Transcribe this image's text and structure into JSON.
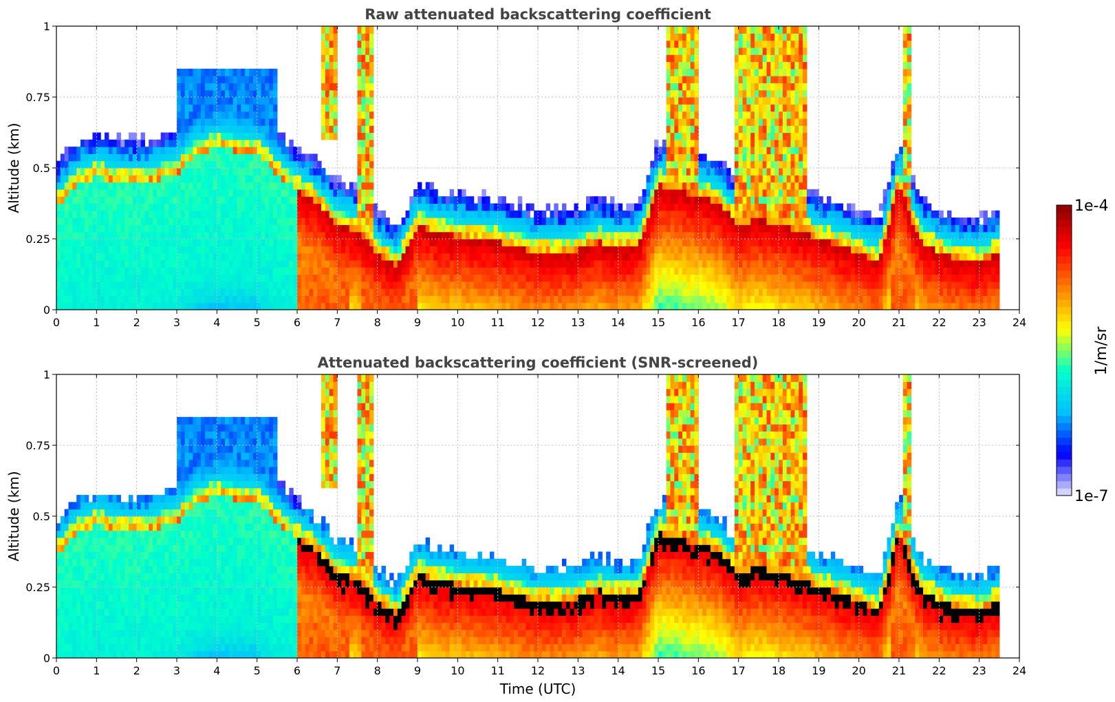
{
  "chart_data": [
    {
      "type": "heatmap",
      "title": "Raw attenuated backscattering coefficient",
      "xlabel": "",
      "ylabel": "Altitude (km)",
      "xlim": [
        0,
        24
      ],
      "ylim": [
        0,
        1
      ],
      "x_ticks": [
        0,
        1,
        2,
        3,
        4,
        5,
        6,
        7,
        8,
        9,
        10,
        11,
        12,
        13,
        14,
        15,
        16,
        17,
        18,
        19,
        20,
        21,
        22,
        23,
        24
      ],
      "y_ticks": [
        0,
        0.25,
        0.5,
        0.75,
        1
      ],
      "y_tick_labels": [
        "0",
        "0.25",
        "0.5",
        "0.75",
        "1"
      ],
      "grid": true,
      "data_end_hour": 23.5,
      "cloud_layer": {
        "description_units": "hour vs cloud altitude in km",
        "times": [
          0,
          0.5,
          1,
          1.5,
          2,
          2.5,
          3,
          3.5,
          4,
          4.5,
          5,
          5.5,
          6,
          6.5,
          7,
          7.5,
          8,
          8.5,
          9,
          9.5,
          10,
          10.5,
          11,
          11.5,
          12,
          12.5,
          13,
          13.5,
          14,
          14.5,
          15,
          15.5,
          16,
          16.5,
          17,
          17.5,
          18,
          18.5,
          19,
          19.5,
          20,
          20.5,
          21,
          21.5,
          22,
          22.5,
          23,
          23.5
        ],
        "altitude_km": [
          0.36,
          0.44,
          0.47,
          0.45,
          0.44,
          0.46,
          0.48,
          0.55,
          0.57,
          0.56,
          0.55,
          0.48,
          0.42,
          0.38,
          0.3,
          0.28,
          0.2,
          0.15,
          0.3,
          0.27,
          0.26,
          0.25,
          0.24,
          0.22,
          0.2,
          0.2,
          0.21,
          0.24,
          0.22,
          0.22,
          0.44,
          0.42,
          0.4,
          0.38,
          0.3,
          0.32,
          0.3,
          0.28,
          0.25,
          0.23,
          0.2,
          0.17,
          0.45,
          0.25,
          0.2,
          0.18,
          0.17,
          0.2
        ]
      },
      "screened": false
    },
    {
      "type": "heatmap",
      "title": "Attenuated backscattering coefficient (SNR-screened)",
      "xlabel": "Time (UTC)",
      "ylabel": "Altitude (km)",
      "xlim": [
        0,
        24
      ],
      "ylim": [
        0,
        1
      ],
      "x_ticks": [
        0,
        1,
        2,
        3,
        4,
        5,
        6,
        7,
        8,
        9,
        10,
        11,
        12,
        13,
        14,
        15,
        16,
        17,
        18,
        19,
        20,
        21,
        22,
        23,
        24
      ],
      "y_ticks": [
        0,
        0.25,
        0.5,
        0.75,
        1
      ],
      "y_tick_labels": [
        "0",
        "0.25",
        "0.5",
        "0.75",
        "1"
      ],
      "grid": true,
      "data_end_hour": 23.5,
      "screened": true
    }
  ],
  "colorbar": {
    "label": "1/m/sr",
    "max_label": "1e-4",
    "min_label": "1e-7",
    "scale": "log",
    "range": [
      1e-07,
      0.0001
    ],
    "colormap": [
      "#e6e6fa",
      "#0000ff",
      "#00bfff",
      "#00ffcc",
      "#ffff00",
      "#ff8000",
      "#ff0000",
      "#8b0000"
    ],
    "screened_color": "#000000"
  }
}
